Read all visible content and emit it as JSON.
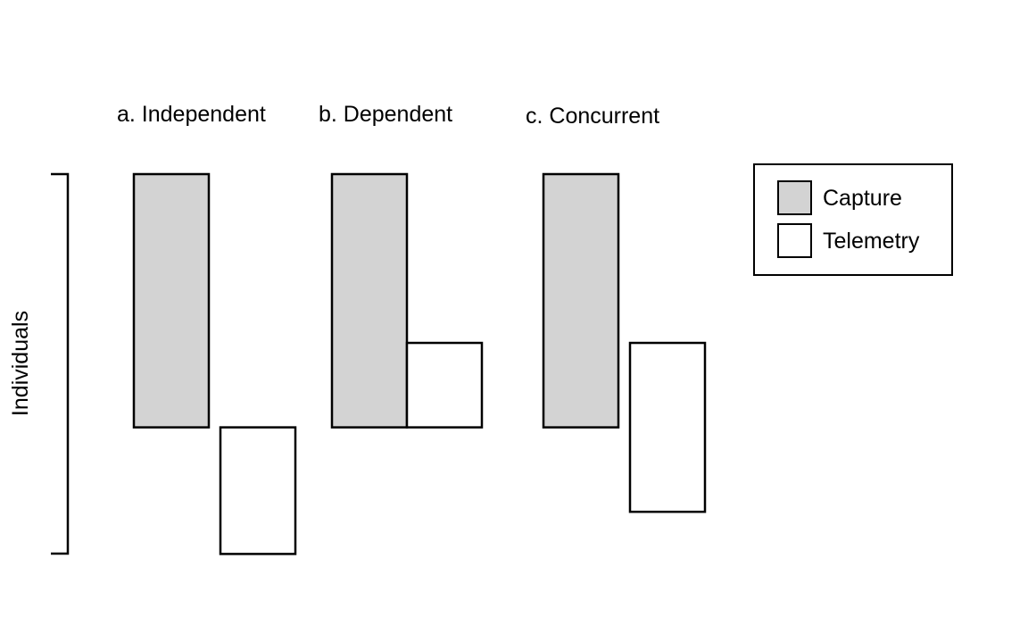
{
  "y_axis_label": "Individuals",
  "panels": [
    {
      "title": "a. Independent",
      "capture": {
        "start": 0,
        "end": 2
      },
      "telemetry": {
        "start": 2,
        "end": 3
      }
    },
    {
      "title": "b. Dependent",
      "capture": {
        "start": 0,
        "end": 2
      },
      "telemetry": {
        "start": 1.333,
        "end": 2
      }
    },
    {
      "title": "c. Concurrent",
      "capture": {
        "start": 0,
        "end": 2
      },
      "telemetry": {
        "start": 1.333,
        "end": 2.667
      }
    }
  ],
  "legend": {
    "items": [
      {
        "label": "Capture",
        "fill": "#d3d3d3"
      },
      {
        "label": "Telemetry",
        "fill": "#ffffff"
      }
    ]
  },
  "colors": {
    "capture": "#d3d3d3",
    "telemetry": "#ffffff",
    "stroke": "#000000"
  }
}
